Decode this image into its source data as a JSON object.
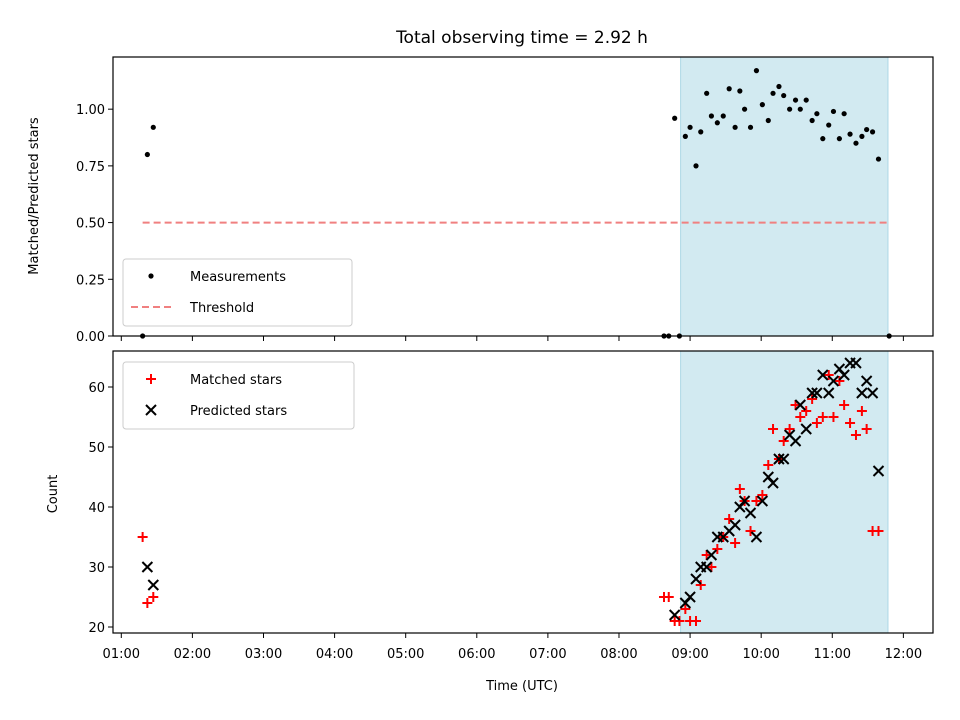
{
  "chart_data": [
    {
      "type": "scatter",
      "title": "Total observing time = 2.92 h",
      "xlabel": "",
      "ylabel": "Matched/Predicted stars",
      "xlim": [
        "00:53",
        "12:25"
      ],
      "ylim": [
        0.0,
        1.23
      ],
      "yticks": [
        0.0,
        0.25,
        0.5,
        0.75,
        1.0
      ],
      "ytick_labels": [
        "0.00",
        "0.25",
        "0.50",
        "0.75",
        "1.00"
      ],
      "shaded_region": {
        "x0": "08:52",
        "x1": "11:47",
        "color": "#add8e6"
      },
      "legend_position": "lower-left",
      "series": [
        {
          "name": "Measurements",
          "marker": "dot",
          "color": "#000000",
          "points": [
            [
              "01:18",
              0.0
            ],
            [
              "01:22",
              0.8
            ],
            [
              "01:27",
              0.92
            ],
            [
              "08:38",
              0.0
            ],
            [
              "08:42",
              0.0
            ],
            [
              "08:47",
              0.96
            ],
            [
              "08:51",
              0.0
            ],
            [
              "08:56",
              0.88
            ],
            [
              "09:00",
              0.92
            ],
            [
              "09:05",
              0.75
            ],
            [
              "09:09",
              0.9
            ],
            [
              "09:14",
              1.07
            ],
            [
              "09:18",
              0.97
            ],
            [
              "09:23",
              0.94
            ],
            [
              "09:28",
              0.97
            ],
            [
              "09:33",
              1.09
            ],
            [
              "09:38",
              0.92
            ],
            [
              "09:42",
              1.08
            ],
            [
              "09:46",
              1.0
            ],
            [
              "09:51",
              0.92
            ],
            [
              "09:56",
              1.17
            ],
            [
              "10:01",
              1.02
            ],
            [
              "10:06",
              0.95
            ],
            [
              "10:10",
              1.07
            ],
            [
              "10:15",
              1.1
            ],
            [
              "10:19",
              1.06
            ],
            [
              "10:24",
              1.0
            ],
            [
              "10:29",
              1.04
            ],
            [
              "10:33",
              1.0
            ],
            [
              "10:38",
              1.04
            ],
            [
              "10:43",
              0.95
            ],
            [
              "10:47",
              0.98
            ],
            [
              "10:52",
              0.87
            ],
            [
              "10:57",
              0.93
            ],
            [
              "11:01",
              0.99
            ],
            [
              "11:06",
              0.87
            ],
            [
              "11:10",
              0.98
            ],
            [
              "11:15",
              0.89
            ],
            [
              "11:20",
              0.85
            ],
            [
              "11:25",
              0.88
            ],
            [
              "11:29",
              0.91
            ],
            [
              "11:34",
              0.9
            ],
            [
              "11:39",
              0.78
            ],
            [
              "11:48",
              0.0
            ]
          ]
        },
        {
          "name": "Threshold",
          "marker": "dashed-line",
          "color": "#f08080",
          "points": [
            [
              "01:18",
              0.5
            ],
            [
              "11:47",
              0.5
            ]
          ]
        }
      ]
    },
    {
      "type": "scatter",
      "title": "",
      "xlabel": "Time (UTC)",
      "ylabel": "Count",
      "xlim": [
        "00:53",
        "12:25"
      ],
      "ylim": [
        19,
        66
      ],
      "yticks": [
        20,
        30,
        40,
        50,
        60
      ],
      "ytick_labels": [
        "20",
        "30",
        "40",
        "50",
        "60"
      ],
      "xticks": [
        "01:00",
        "02:00",
        "03:00",
        "04:00",
        "05:00",
        "06:00",
        "07:00",
        "08:00",
        "09:00",
        "10:00",
        "11:00",
        "12:00"
      ],
      "shaded_region": {
        "x0": "08:52",
        "x1": "11:47",
        "color": "#add8e6"
      },
      "legend_position": "top-left",
      "series": [
        {
          "name": "Matched stars",
          "marker": "plus",
          "color": "#ff0000",
          "points": [
            [
              "01:18",
              35
            ],
            [
              "01:22",
              24
            ],
            [
              "01:27",
              25
            ],
            [
              "08:38",
              25
            ],
            [
              "08:42",
              25
            ],
            [
              "08:47",
              21
            ],
            [
              "08:51",
              21
            ],
            [
              "08:56",
              23
            ],
            [
              "09:00",
              21
            ],
            [
              "09:05",
              21
            ],
            [
              "09:09",
              27
            ],
            [
              "09:14",
              32
            ],
            [
              "09:18",
              30
            ],
            [
              "09:23",
              33
            ],
            [
              "09:28",
              35
            ],
            [
              "09:33",
              38
            ],
            [
              "09:38",
              34
            ],
            [
              "09:42",
              43
            ],
            [
              "09:46",
              41
            ],
            [
              "09:51",
              36
            ],
            [
              "09:56",
              41
            ],
            [
              "10:01",
              42
            ],
            [
              "10:06",
              47
            ],
            [
              "10:10",
              53
            ],
            [
              "10:15",
              48
            ],
            [
              "10:19",
              51
            ],
            [
              "10:24",
              53
            ],
            [
              "10:29",
              57
            ],
            [
              "10:33",
              55
            ],
            [
              "10:38",
              56
            ],
            [
              "10:43",
              58
            ],
            [
              "10:47",
              54
            ],
            [
              "10:52",
              55
            ],
            [
              "10:57",
              62
            ],
            [
              "11:01",
              55
            ],
            [
              "11:06",
              61
            ],
            [
              "11:10",
              57
            ],
            [
              "11:15",
              54
            ],
            [
              "11:20",
              52
            ],
            [
              "11:25",
              56
            ],
            [
              "11:29",
              53
            ],
            [
              "11:34",
              36
            ],
            [
              "11:39",
              36
            ]
          ]
        },
        {
          "name": "Predicted stars",
          "marker": "x",
          "color": "#000000",
          "points": [
            [
              "01:22",
              30
            ],
            [
              "01:27",
              27
            ],
            [
              "08:47",
              22
            ],
            [
              "08:56",
              24
            ],
            [
              "09:00",
              25
            ],
            [
              "09:05",
              28
            ],
            [
              "09:09",
              30
            ],
            [
              "09:14",
              30
            ],
            [
              "09:18",
              32
            ],
            [
              "09:23",
              35
            ],
            [
              "09:28",
              35
            ],
            [
              "09:33",
              36
            ],
            [
              "09:38",
              37
            ],
            [
              "09:42",
              40
            ],
            [
              "09:46",
              41
            ],
            [
              "09:51",
              39
            ],
            [
              "09:56",
              35
            ],
            [
              "10:01",
              41
            ],
            [
              "10:06",
              45
            ],
            [
              "10:10",
              44
            ],
            [
              "10:15",
              48
            ],
            [
              "10:19",
              48
            ],
            [
              "10:24",
              52
            ],
            [
              "10:29",
              51
            ],
            [
              "10:33",
              57
            ],
            [
              "10:38",
              53
            ],
            [
              "10:43",
              59
            ],
            [
              "10:47",
              59
            ],
            [
              "10:52",
              62
            ],
            [
              "10:57",
              59
            ],
            [
              "11:01",
              61
            ],
            [
              "11:06",
              63
            ],
            [
              "11:10",
              62
            ],
            [
              "11:15",
              64
            ],
            [
              "11:20",
              64
            ],
            [
              "11:25",
              59
            ],
            [
              "11:29",
              61
            ],
            [
              "11:34",
              59
            ],
            [
              "11:39",
              46
            ]
          ]
        }
      ]
    }
  ]
}
